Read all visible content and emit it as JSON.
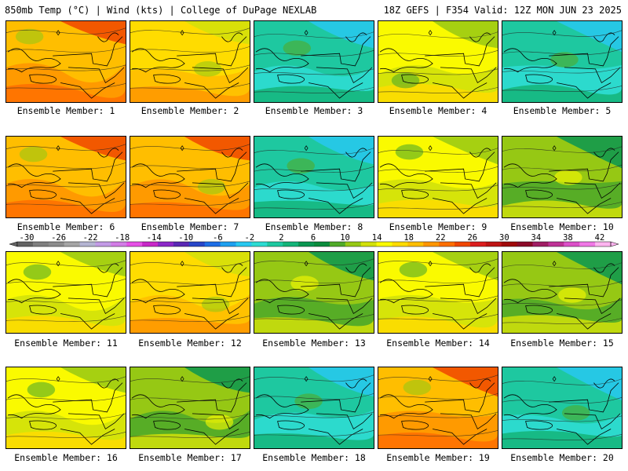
{
  "header": {
    "left": "850mb Temp (°C) | Wind (kts) | College of DuPage NEXLAB",
    "right": "18Z GEFS | F354 Valid: 12Z MON JUN 23 2025"
  },
  "members": [
    {
      "caption": "Ensemble Member: 1",
      "scheme": "hot"
    },
    {
      "caption": "Ensemble Member: 2",
      "scheme": "warm"
    },
    {
      "caption": "Ensemble Member: 3",
      "scheme": "cool"
    },
    {
      "caption": "Ensemble Member: 4",
      "scheme": "mild"
    },
    {
      "caption": "Ensemble Member: 5",
      "scheme": "cool"
    },
    {
      "caption": "Ensemble Member: 6",
      "scheme": "hot"
    },
    {
      "caption": "Ensemble Member: 7",
      "scheme": "hot"
    },
    {
      "caption": "Ensemble Member: 8",
      "scheme": "cool"
    },
    {
      "caption": "Ensemble Member: 9",
      "scheme": "mild"
    },
    {
      "caption": "Ensemble Member: 10",
      "scheme": "green"
    },
    {
      "caption": "Ensemble Member: 11",
      "scheme": "mild"
    },
    {
      "caption": "Ensemble Member: 12",
      "scheme": "warm"
    },
    {
      "caption": "Ensemble Member: 13",
      "scheme": "green"
    },
    {
      "caption": "Ensemble Member: 14",
      "scheme": "mild"
    },
    {
      "caption": "Ensemble Member: 15",
      "scheme": "green"
    },
    {
      "caption": "Ensemble Member: 16",
      "scheme": "mild"
    },
    {
      "caption": "Ensemble Member: 17",
      "scheme": "green"
    },
    {
      "caption": "Ensemble Member: 18",
      "scheme": "cool"
    },
    {
      "caption": "Ensemble Member: 19",
      "scheme": "hot"
    },
    {
      "caption": "Ensemble Member: 20",
      "scheme": "cool"
    }
  ],
  "colorbar": {
    "labels": [
      "-30",
      "-26",
      "-22",
      "-18",
      "-14",
      "-10",
      "-6",
      "-2",
      "2",
      "6",
      "10",
      "14",
      "18",
      "22",
      "26",
      "30",
      "34",
      "38",
      "42"
    ],
    "colors": [
      "#646464",
      "#7f7f7f",
      "#8c8c8c",
      "#a5a5a5",
      "#b4b4d2",
      "#c39be6",
      "#d27de6",
      "#e650e6",
      "#c828c8",
      "#8c28c8",
      "#5a28b4",
      "#2846c8",
      "#1e6ee6",
      "#1ea0f0",
      "#28c8f0",
      "#2ddcd2",
      "#1ec8a0",
      "#14b478",
      "#0a9650",
      "#0a8c3c",
      "#50aa28",
      "#96c814",
      "#d2e10a",
      "#fafa00",
      "#ffdc00",
      "#ffbe00",
      "#ff9600",
      "#ff6e00",
      "#f04600",
      "#dc1e1e",
      "#be1414",
      "#a00a0a",
      "#8c0a28",
      "#a01e64",
      "#be3296",
      "#dc50c8",
      "#f078e6",
      "#ffb4f0"
    ],
    "scheme_colors": {
      "hot": [
        "#ffbe00",
        "#ff9600",
        "#ff6e00",
        "#f04600",
        "#96c814"
      ],
      "warm": [
        "#ffdc00",
        "#ffbe00",
        "#ff9600",
        "#d2e10a",
        "#96c814"
      ],
      "mild": [
        "#fafa00",
        "#d2e10a",
        "#ffdc00",
        "#96c814",
        "#50aa28"
      ],
      "green": [
        "#96c814",
        "#50aa28",
        "#d2e10a",
        "#0a9650",
        "#fafa00"
      ],
      "cool": [
        "#1ec8a0",
        "#2ddcd2",
        "#14b478",
        "#28c8f0",
        "#50aa28"
      ]
    }
  }
}
